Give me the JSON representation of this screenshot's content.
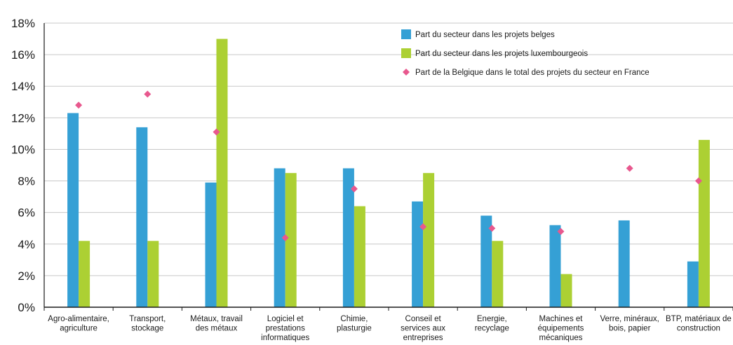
{
  "chart_data": {
    "type": "bar",
    "categories": [
      [
        "Agro-alimentaire,",
        "agriculture"
      ],
      [
        "Transport,",
        "stockage"
      ],
      [
        "Métaux, travail",
        "des métaux"
      ],
      [
        "Logiciel et",
        "prestations",
        "informatiques"
      ],
      [
        "Chimie,",
        "plasturgie"
      ],
      [
        "Conseil et",
        "services aux",
        "entreprises"
      ],
      [
        "Energie,",
        "recyclage"
      ],
      [
        "Machines et",
        "équipements",
        "mécaniques"
      ],
      [
        "Verre, minéraux,",
        "bois, papier"
      ],
      [
        "BTP, matériaux de",
        "construction"
      ]
    ],
    "series": [
      {
        "name": "Part du secteur dans les projets belges",
        "kind": "bar",
        "color": "#35a0d5",
        "values": [
          12.3,
          11.4,
          7.9,
          8.8,
          8.8,
          6.7,
          5.8,
          5.2,
          5.5,
          2.9
        ]
      },
      {
        "name": "Part du secteur dans les projets luxembourgeois",
        "kind": "bar",
        "color": "#acd033",
        "values": [
          4.2,
          4.2,
          17.0,
          8.5,
          6.4,
          8.5,
          4.2,
          2.1,
          null,
          10.6
        ]
      },
      {
        "name": "Part de la Belgique dans le total des projets du secteur en France",
        "kind": "marker",
        "color": "#e8588e",
        "values": [
          12.8,
          13.5,
          11.1,
          4.4,
          7.5,
          5.1,
          5.0,
          4.8,
          8.8,
          8.0
        ]
      }
    ],
    "ylim": [
      0,
      18
    ],
    "yticks": [
      "0%",
      "2%",
      "4%",
      "6%",
      "8%",
      "10%",
      "12%",
      "14%",
      "16%",
      "18%"
    ],
    "grid": true,
    "legend": "top-right"
  }
}
